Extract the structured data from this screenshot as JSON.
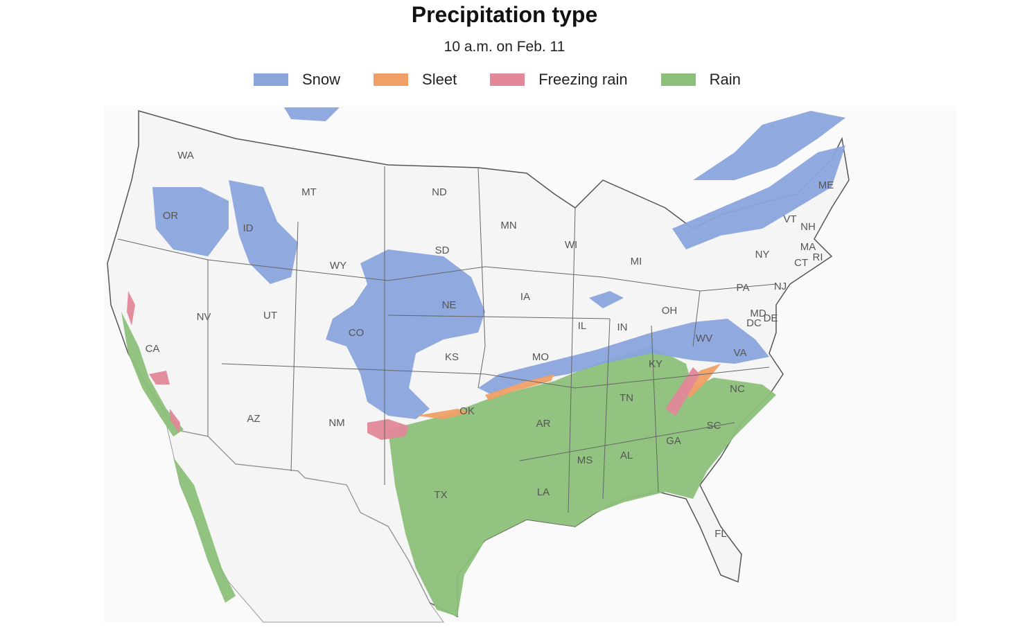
{
  "header": {
    "title": "Precipitation type",
    "subtitle": "10 a.m. on Feb. 11"
  },
  "legend": {
    "items": [
      {
        "label": "Snow",
        "color": "#8aa4dc"
      },
      {
        "label": "Sleet",
        "color": "#f0a066"
      },
      {
        "label": "Freezing rain",
        "color": "#e28898"
      },
      {
        "label": "Rain",
        "color": "#8cc07a"
      }
    ]
  },
  "map": {
    "states": [
      "WA",
      "OR",
      "ID",
      "MT",
      "ND",
      "MN",
      "SD",
      "WY",
      "WI",
      "MI",
      "NY",
      "VT",
      "NH",
      "ME",
      "MA",
      "CT",
      "RI",
      "NV",
      "UT",
      "CO",
      "NE",
      "IA",
      "IL",
      "IN",
      "OH",
      "PA",
      "NJ",
      "MD",
      "DE",
      "DC",
      "WV",
      "VA",
      "KY",
      "CA",
      "KS",
      "MO",
      "AZ",
      "NM",
      "OK",
      "AR",
      "TN",
      "NC",
      "SC",
      "GA",
      "AL",
      "MS",
      "LA",
      "TX",
      "FL"
    ]
  }
}
